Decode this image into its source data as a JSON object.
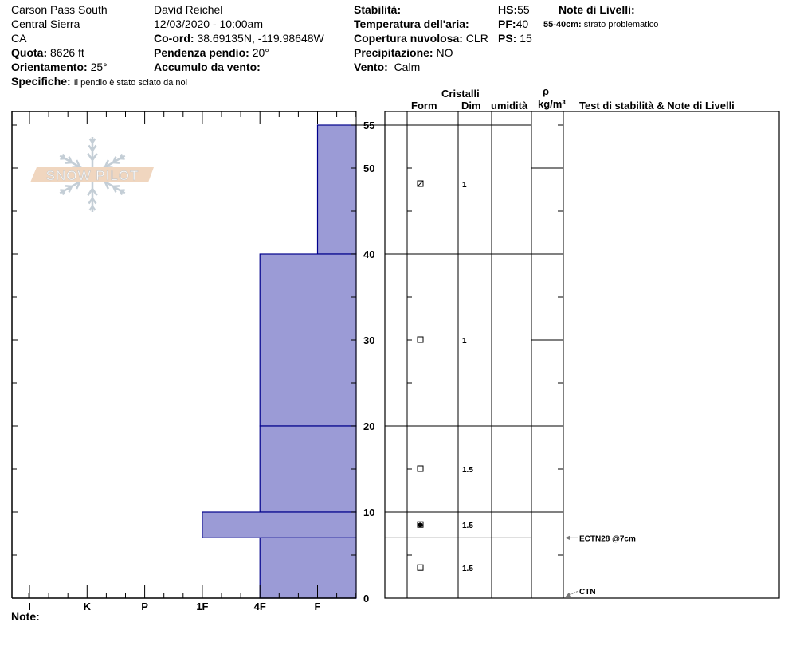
{
  "header": {
    "location": "Carson Pass South",
    "range": "Central Sierra",
    "state": "CA",
    "elevation_label": "Quota:",
    "elevation": "8626 ft",
    "aspect_label": "Orientamento:",
    "aspect": "25°",
    "specifics_label": "Specifiche:",
    "specifics": "Il pendio è stato sciato da noi",
    "observer": "David Reichel",
    "datetime": "12/03/2020 - 10:00am",
    "coord_label": "Co-ord:",
    "coord": "38.69135N, -119.98648W",
    "slope_label": "Pendenza pendio:",
    "slope": "20°",
    "wind_loading_label": "Accumulo da vento:",
    "wind_loading": "",
    "stability_label": "Stabilità:",
    "stability": "",
    "air_temp_label": "Temperatura dell'aria:",
    "air_temp": "",
    "sky_label": "Copertura nuvolosa:",
    "sky": "CLR",
    "precip_label": "Precipitazione:",
    "precip": "NO",
    "wind_label": "Vento:",
    "wind": "Calm",
    "hs_label": "HS:",
    "hs": "55",
    "pf_label": "PF:",
    "pf": "40",
    "ps_label": "PS:",
    "ps": "15",
    "layer_notes_label": "Note di Livelli:",
    "layer_notes": [
      {
        "range": "55-40cm:",
        "text": "strato problematico"
      }
    ],
    "note_label": "Note:"
  },
  "table_headers": {
    "crystals": "Cristalli",
    "form": "Form",
    "size": "Dim",
    "moisture": "umidità",
    "rho": "ρ",
    "density": "kg/m³",
    "tests": "Test di stabilità & Note di Livelli"
  },
  "logo": {
    "text": "SNOW PILOT",
    "bar_color": "#f0d6bf",
    "flake_color": "#c4ced6"
  },
  "chart_data": {
    "type": "bar",
    "orientation": "horizontal",
    "y_axis": {
      "label": "",
      "unit": "cm",
      "range": [
        0,
        55
      ],
      "ticks": [
        0,
        10,
        20,
        30,
        40,
        50,
        55
      ]
    },
    "x_axis": {
      "label": "",
      "categories": [
        "I",
        "K",
        "P",
        "1F",
        "4F",
        "F"
      ]
    },
    "bar_color": "#9b9bd6",
    "bar_edge_color": "#00008b",
    "layers": [
      {
        "top": 55,
        "bottom": 40,
        "hardness": "F",
        "form": "faceted-rounded",
        "size": "1"
      },
      {
        "top": 40,
        "bottom": 20,
        "hardness": "4F",
        "form": "faceted",
        "size": "1"
      },
      {
        "top": 20,
        "bottom": 10,
        "hardness": "4F",
        "form": "faceted",
        "size": "1.5"
      },
      {
        "top": 10,
        "bottom": 7,
        "hardness": "1F",
        "form": "melt-freeze",
        "size": "1.5"
      },
      {
        "top": 7,
        "bottom": 0,
        "hardness": "4F",
        "form": "faceted",
        "size": "1.5"
      }
    ],
    "tests": [
      {
        "depth": 7,
        "label": "ECTN28 @7cm"
      },
      {
        "depth": 0,
        "label": "CTN"
      }
    ]
  }
}
